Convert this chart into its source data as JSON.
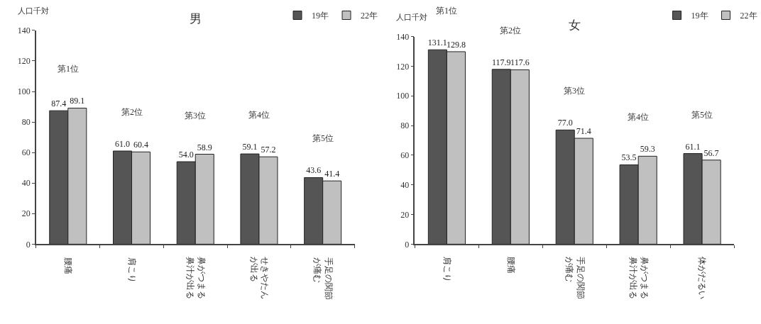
{
  "chart_data": [
    {
      "type": "bar",
      "title": "男",
      "ylabel": "人口千対",
      "categories": [
        "腰痛",
        "肩こり",
        "鼻がつまる鼻汁が出る",
        "せきやたんが出る",
        "手足の関節が痛む"
      ],
      "series": [
        {
          "name": "19年",
          "color": "#555555",
          "values": [
            87.4,
            61.0,
            54.0,
            59.1,
            43.6
          ],
          "value_labels": [
            "87.4",
            "61.0",
            "54.0",
            "59.1",
            "43.6"
          ]
        },
        {
          "name": "22年",
          "color": "#c0c0c0",
          "values": [
            89.1,
            60.4,
            58.9,
            57.2,
            41.4
          ],
          "value_labels": [
            "89.1",
            "60.4",
            "58.9",
            "57.2",
            "41.4"
          ]
        }
      ],
      "ylim": [
        0,
        140
      ],
      "yticks": [
        0,
        20,
        40,
        60,
        80,
        100,
        120,
        140
      ],
      "legend": "top right",
      "annotations": [
        "第1位",
        "第2位",
        "第3位",
        "第4位",
        "第5位"
      ]
    },
    {
      "type": "bar",
      "title": "女",
      "ylabel": "人口千対",
      "categories": [
        "肩こり",
        "腰痛",
        "手足の関節が痛む",
        "鼻がつまる鼻汁が出る",
        "体がだるい"
      ],
      "series": [
        {
          "name": "19年",
          "color": "#555555",
          "values": [
            131.1,
            117.9,
            77.0,
            53.5,
            61.1
          ],
          "value_labels": [
            "131.1",
            "117.9",
            "77.0",
            "53.5",
            "61.1"
          ]
        },
        {
          "name": "22年",
          "color": "#c0c0c0",
          "values": [
            129.8,
            117.6,
            71.4,
            59.3,
            56.7
          ],
          "value_labels": [
            "129.8",
            "117.6",
            "71.4",
            "59.3",
            "56.7"
          ]
        }
      ],
      "ylim": [
        0,
        140
      ],
      "yticks": [
        0,
        20,
        40,
        60,
        80,
        100,
        120,
        140
      ],
      "legend": "top right",
      "annotations": [
        "第1位",
        "第2位",
        "第3位",
        "第4位",
        "第5位"
      ]
    }
  ]
}
